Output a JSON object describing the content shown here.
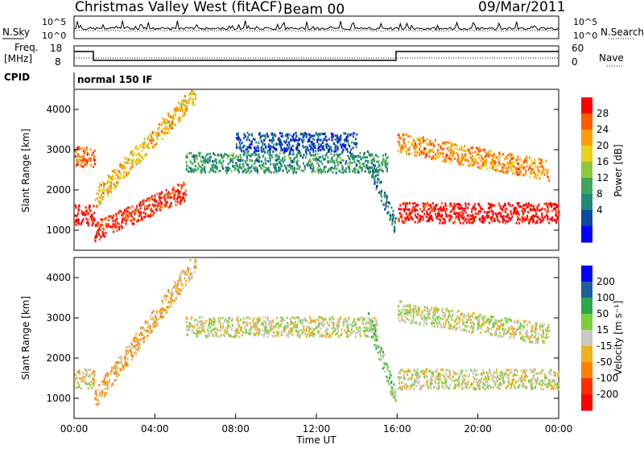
{
  "header": {
    "station": "Christmas Valley West (fitACF)",
    "beam": "Beam 00",
    "date": "09/Mar/2011"
  },
  "strips": {
    "noise_left_label": "N.Sky",
    "noise_right_label": "N.Search",
    "noise_left_ticks": [
      "10^5",
      "10^0"
    ],
    "noise_right_ticks": [
      "10^5",
      "10^0"
    ],
    "freq_label_line1": "Freq.",
    "freq_label_line2": "[MHz]",
    "freq_ticks": [
      "18",
      "8"
    ],
    "nave_label": "Nave",
    "nave_ticks": [
      "60",
      "0"
    ],
    "cpid_label": "CPID",
    "cpid_text": "normal 150 IF"
  },
  "chart_data": [
    {
      "type": "heatmap",
      "title": "",
      "ylabel": "Slant Range [km]",
      "xlabel": "",
      "ylim": [
        500,
        4500
      ],
      "y_ticks": [
        "4000",
        "3000",
        "2000",
        "1000"
      ],
      "colorbar": {
        "label": "Power [dB]",
        "ticks": [
          "28",
          "24",
          "20",
          "16",
          "12",
          "8",
          "4"
        ],
        "colors": [
          "#ff0000",
          "#ff5a00",
          "#ff9e00",
          "#e8d21a",
          "#8cc83c",
          "#3ea65a",
          "#1e8a78",
          "#0a4a9a",
          "#0000ff"
        ]
      },
      "regions": [
        {
          "t_start": 0.0,
          "t_end": 1.0,
          "range_km": 1400,
          "value": 28
        },
        {
          "t_start": 0.0,
          "t_end": 1.0,
          "range_km": 2850,
          "value": 24
        },
        {
          "t_start": 1.0,
          "t_end": 5.5,
          "range_km_start": 1000,
          "range_km_end": 2000,
          "value": 26
        },
        {
          "t_start": 1.0,
          "t_end": 6.0,
          "range_km_start": 1800,
          "range_km_end": 4400,
          "value": 20
        },
        {
          "t_start": 5.5,
          "t_end": 15.5,
          "range_km": 2700,
          "value": 12
        },
        {
          "t_start": 8.0,
          "t_end": 14.0,
          "range_km": 3200,
          "value": 8
        },
        {
          "t_start": 14.5,
          "t_end": 15.9,
          "range_km_start": 2800,
          "range_km_end": 1100,
          "value": 10
        },
        {
          "t_start": 16.0,
          "t_end": 24.0,
          "range_km": 1450,
          "value": 28
        },
        {
          "t_start": 16.0,
          "t_end": 23.5,
          "range_km_start": 3200,
          "range_km_end": 2500,
          "value": 22
        }
      ]
    },
    {
      "type": "heatmap",
      "title": "",
      "ylabel": "Slant Range [km]",
      "xlabel": "Time UT",
      "ylim": [
        500,
        4500
      ],
      "y_ticks": [
        "4000",
        "3000",
        "2000",
        "1000"
      ],
      "x_ticks": [
        "00:00",
        "04:00",
        "08:00",
        "12:00",
        "16:00",
        "20:00",
        "00:00"
      ],
      "colorbar": {
        "label": "Velocity [m s⁻¹]",
        "ticks": [
          "200",
          "100",
          "50",
          "15",
          "-15",
          "-50",
          "-100",
          "-200"
        ],
        "colors": [
          "#0000ff",
          "#1e5fa0",
          "#2aa84a",
          "#7ad03a",
          "#c8c8c0",
          "#f0b020",
          "#ff8000",
          "#ff3000",
          "#ff0000"
        ]
      },
      "regions": [
        {
          "t_start": 0.0,
          "t_end": 1.0,
          "range_km": 1500,
          "value": -15
        },
        {
          "t_start": 1.0,
          "t_end": 6.0,
          "range_km_start": 1000,
          "range_km_end": 4400,
          "value": -50
        },
        {
          "t_start": 5.5,
          "t_end": 15.0,
          "range_km": 2800,
          "value": 0
        },
        {
          "t_start": 14.5,
          "t_end": 15.9,
          "range_km_start": 3100,
          "range_km_end": 1000,
          "value": 50
        },
        {
          "t_start": 16.0,
          "t_end": 24.0,
          "range_km": 1500,
          "value": 0
        },
        {
          "t_start": 16.0,
          "t_end": 23.5,
          "range_km_start": 3200,
          "range_km_end": 2600,
          "value": 0
        }
      ]
    }
  ]
}
